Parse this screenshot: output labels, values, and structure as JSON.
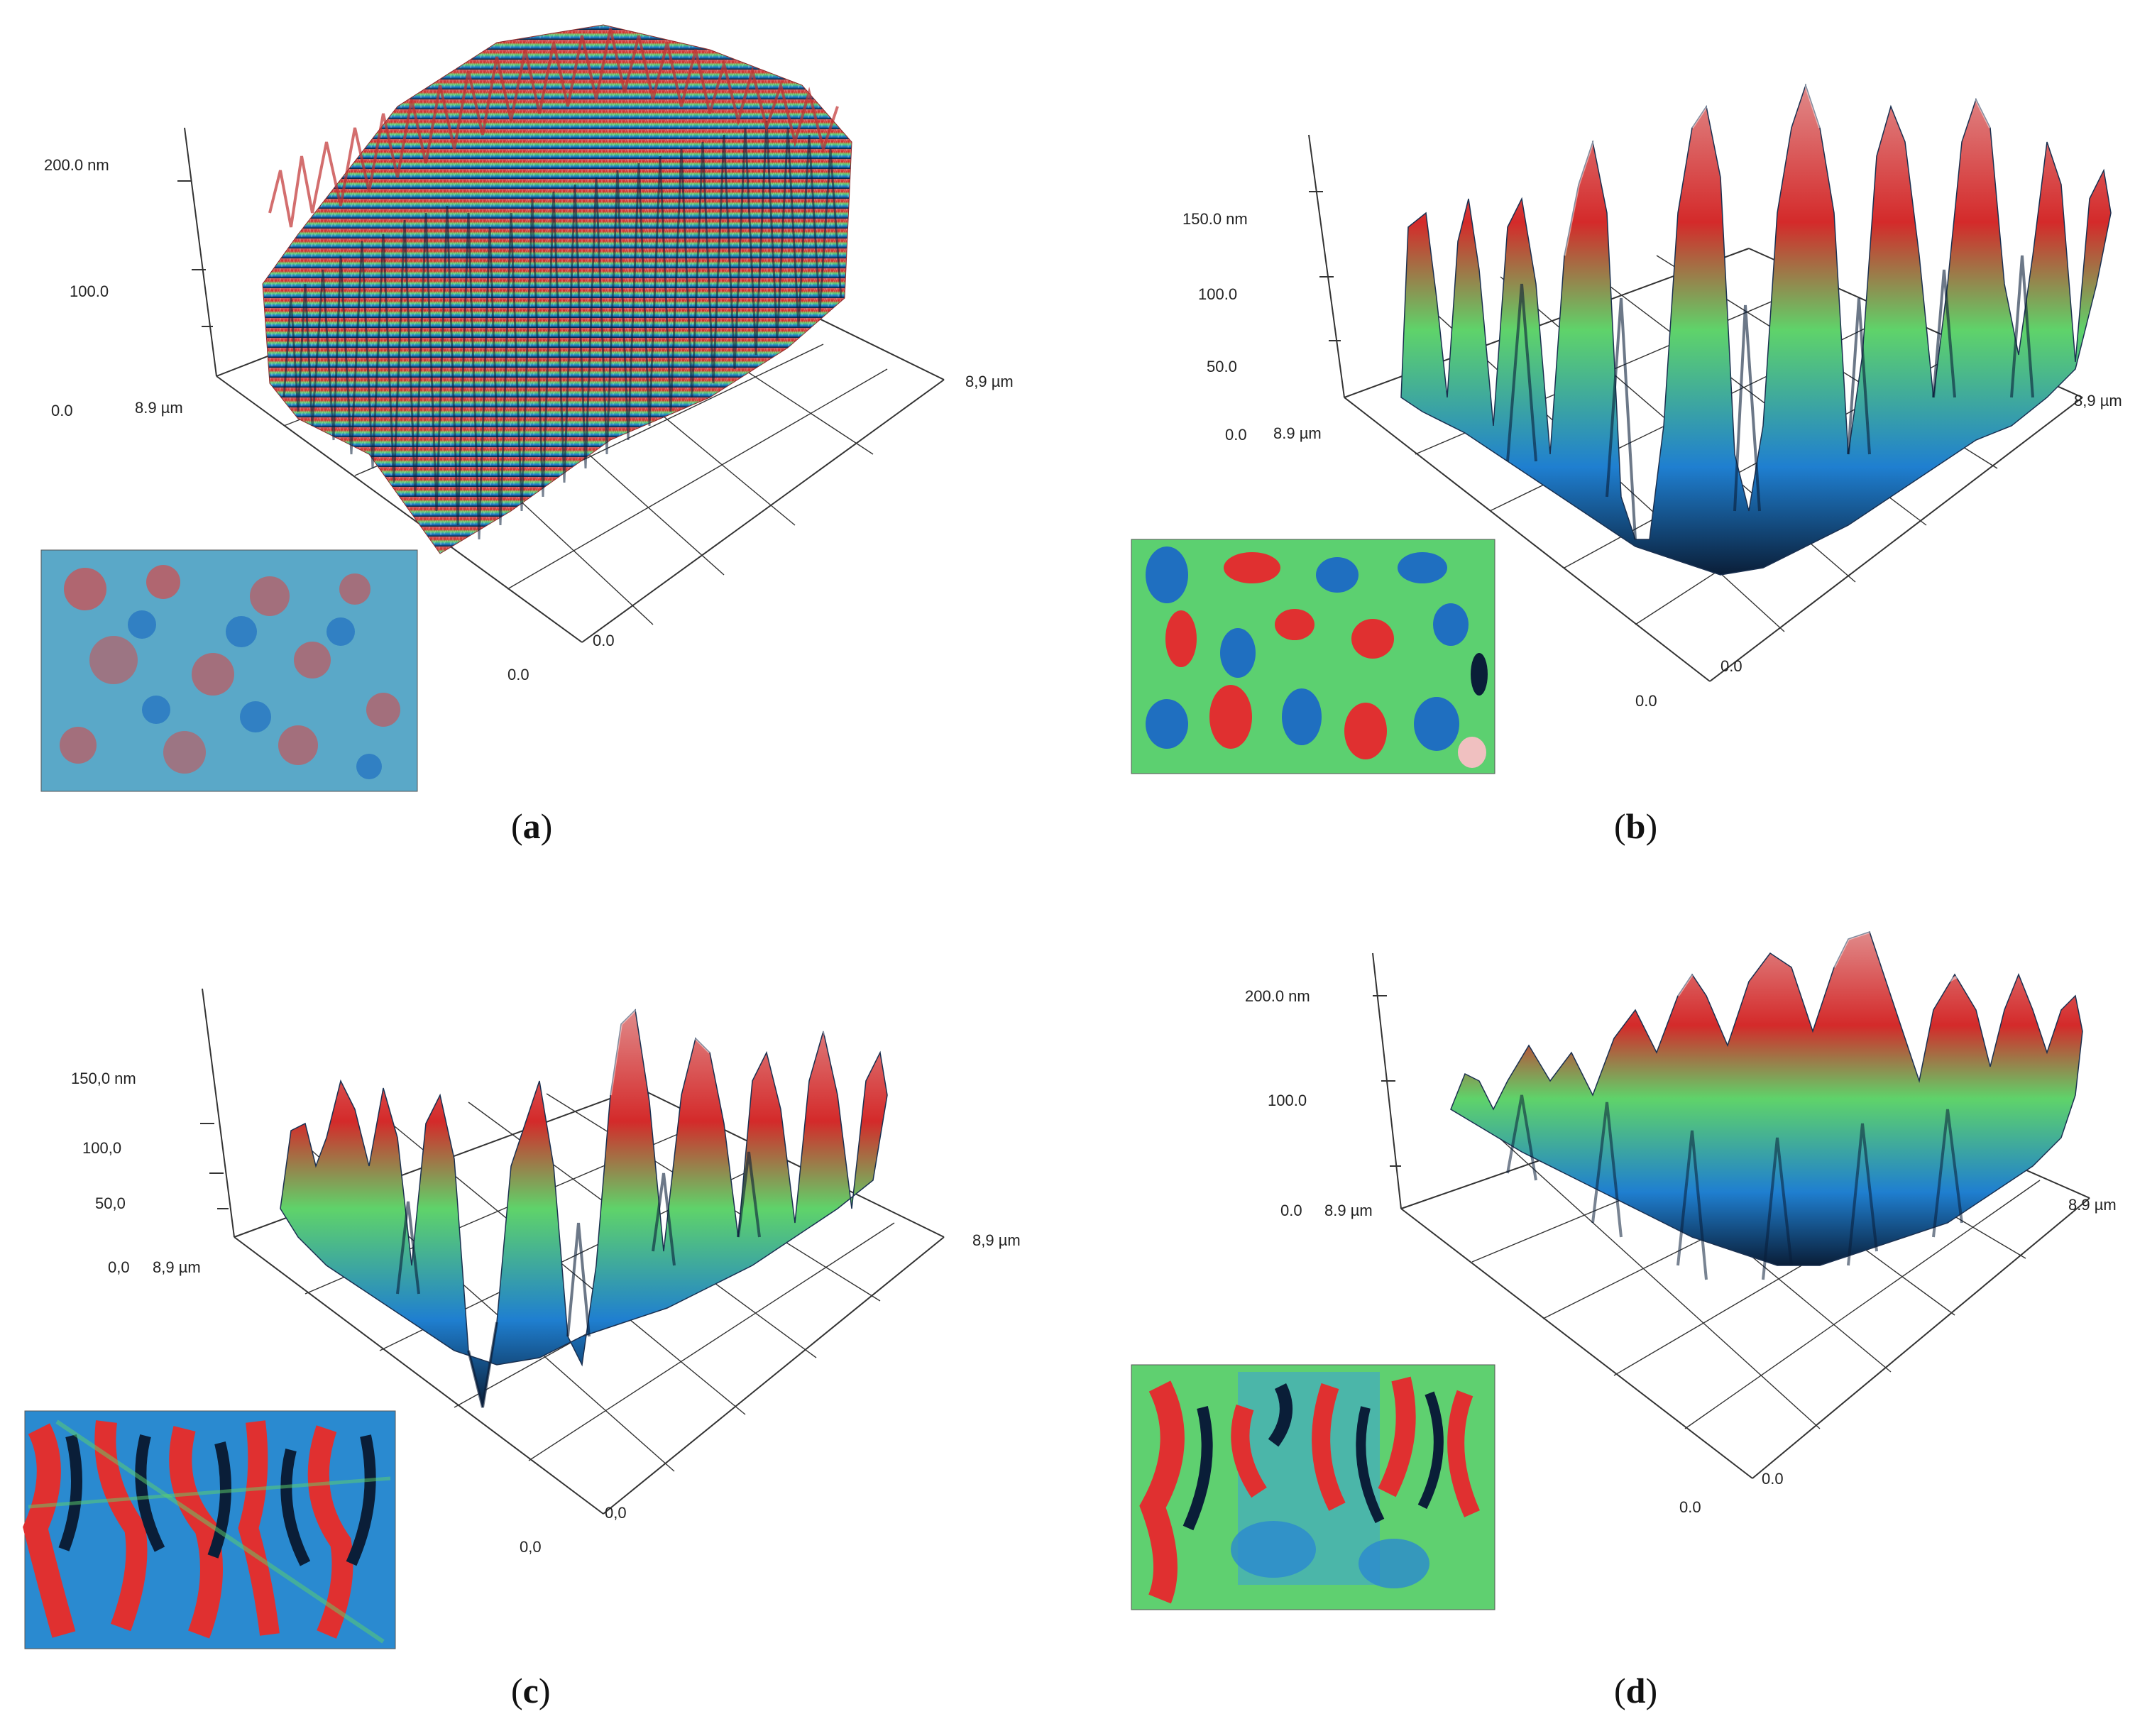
{
  "figure": {
    "panels": [
      {
        "id": "a",
        "letter": "a",
        "z_labels": [
          "200.0 nm",
          "100.0",
          "0.0"
        ],
        "y_label": "8.9 µm",
        "x_label": "8,9 µm",
        "origin_label_x": "0.0",
        "origin_label_y": "0.0",
        "z_max_nm": 200,
        "scan_size_um": 8.9
      },
      {
        "id": "b",
        "letter": "b",
        "z_labels": [
          "150.0 nm",
          "100.0",
          "50.0",
          "0.0"
        ],
        "y_label": "8.9 µm",
        "x_label": "8,9 µm",
        "origin_label_x": "0.0",
        "origin_label_y": "0.0",
        "z_max_nm": 150,
        "scan_size_um": 8.9
      },
      {
        "id": "c",
        "letter": "c",
        "z_labels": [
          "150,0 nm",
          "100,0",
          "50,0",
          "0,0"
        ],
        "y_label": "8,9 µm",
        "x_label": "8,9 µm",
        "origin_label_x": "0,0",
        "origin_label_y": "0,0",
        "z_max_nm": 150,
        "scan_size_um": 8.9
      },
      {
        "id": "d",
        "letter": "d",
        "z_labels": [
          "200.0 nm",
          "100.0",
          "0.0"
        ],
        "y_label": "8.9 µm",
        "x_label": "8.9 µm",
        "origin_label_x": "0.0",
        "origin_label_y": "0.0",
        "z_max_nm": 200,
        "scan_size_um": 8.9
      }
    ],
    "colors": {
      "high": "#d42a2a",
      "mid": "#5fd36a",
      "low": "#1f7fd0",
      "deep": "#0a1e38",
      "axis": "#333333"
    }
  }
}
